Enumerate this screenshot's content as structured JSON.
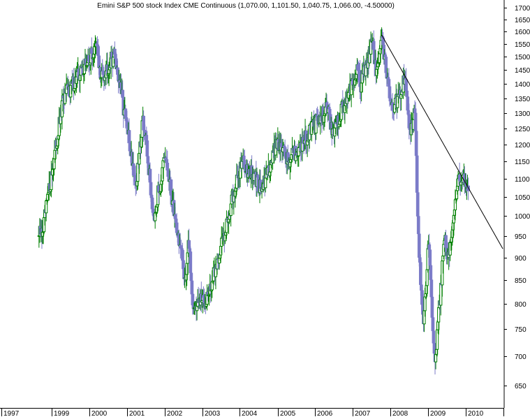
{
  "chart_data": {
    "type": "candlestick",
    "title": "Emini S&P 500 stock Index CME Continuous (1,070.00, 1,101.50, 1,040.75, 1,066.00, -4.50000)",
    "xlabel": "",
    "ylabel": "",
    "y_scale": "log",
    "ylim": [
      605,
      1735
    ],
    "y_ticks": [
      650,
      700,
      750,
      800,
      850,
      900,
      950,
      1000,
      1050,
      1100,
      1150,
      1200,
      1250,
      1300,
      1350,
      1400,
      1450,
      1500,
      1550,
      1600,
      1650,
      1700
    ],
    "x_tick_labels": [
      "1997",
      "1999",
      "2000",
      "2001",
      "2002",
      "2003",
      "2004",
      "2005",
      "2006",
      "2007",
      "2008",
      "2009",
      "2010"
    ],
    "period": "weekly",
    "up_color": "#008000",
    "down_color": "#7b7bc8",
    "line_color": "#000000",
    "anchors": [
      {
        "date": "1998-08-24",
        "close": 950
      },
      {
        "date": "1998-10-05",
        "close": 960
      },
      {
        "date": "1999-04-26",
        "close": 1350
      },
      {
        "date": "2000-03-20",
        "close": 1540
      },
      {
        "date": "2000-04-17",
        "close": 1420
      },
      {
        "date": "2000-09-04",
        "close": 1510
      },
      {
        "date": "2001-04-02",
        "close": 1080
      },
      {
        "date": "2001-06-04",
        "close": 1290
      },
      {
        "date": "2001-09-17",
        "close": 1000
      },
      {
        "date": "2002-01-07",
        "close": 1160
      },
      {
        "date": "2002-07-22",
        "close": 850
      },
      {
        "date": "2002-08-19",
        "close": 940
      },
      {
        "date": "2002-10-07",
        "close": 790
      },
      {
        "date": "2003-03-10",
        "close": 820
      },
      {
        "date": "2004-01-19",
        "close": 1150
      },
      {
        "date": "2004-08-09",
        "close": 1070
      },
      {
        "date": "2004-12-27",
        "close": 1215
      },
      {
        "date": "2005-04-18",
        "close": 1150
      },
      {
        "date": "2006-05-08",
        "close": 1320
      },
      {
        "date": "2006-06-12",
        "close": 1230
      },
      {
        "date": "2007-02-19",
        "close": 1450
      },
      {
        "date": "2007-03-12",
        "close": 1390
      },
      {
        "date": "2007-07-16",
        "close": 1560
      },
      {
        "date": "2007-08-13",
        "close": 1430
      },
      {
        "date": "2007-10-08",
        "close": 1580
      },
      {
        "date": "2008-01-21",
        "close": 1310
      },
      {
        "date": "2008-05-19",
        "close": 1420
      },
      {
        "date": "2008-07-14",
        "close": 1230
      },
      {
        "date": "2008-08-25",
        "close": 1300
      },
      {
        "date": "2008-10-06",
        "close": 900
      },
      {
        "date": "2008-11-17",
        "close": 760
      },
      {
        "date": "2009-01-05",
        "close": 930
      },
      {
        "date": "2009-03-09",
        "close": 690
      },
      {
        "date": "2009-06-08",
        "close": 940
      },
      {
        "date": "2009-07-13",
        "close": 900
      },
      {
        "date": "2009-10-19",
        "close": 1100
      },
      {
        "date": "2009-12-07",
        "close": 1110
      },
      {
        "date": "2010-01-25",
        "close": 1066
      }
    ],
    "trendline": {
      "start": {
        "date": "2007-10-08",
        "value": 1586
      },
      "end": {
        "date": "2010-12-27",
        "value": 920
      }
    }
  }
}
